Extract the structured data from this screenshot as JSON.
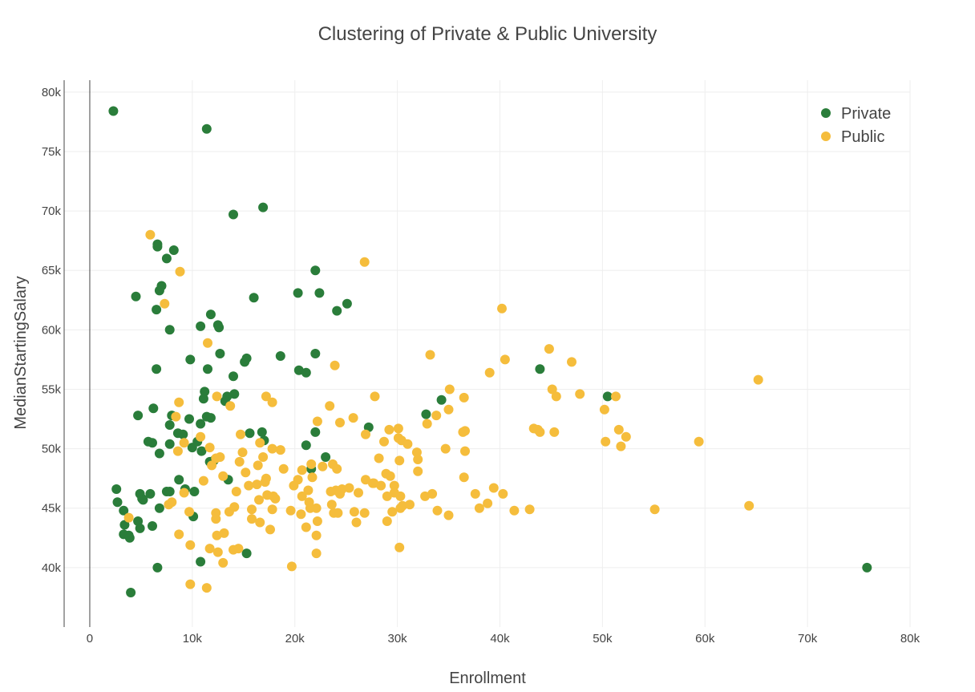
{
  "chart_data": {
    "type": "scatter",
    "title": "Clustering of Private & Public University",
    "xlabel": "Enrollment",
    "ylabel": "MedianStartingSalary",
    "xlim": [
      -2500,
      80000
    ],
    "ylim": [
      35000,
      81000
    ],
    "xticks": [
      0,
      10000,
      20000,
      30000,
      40000,
      50000,
      60000,
      70000,
      80000
    ],
    "xtick_labels": [
      "0",
      "10k",
      "20k",
      "30k",
      "40k",
      "50k",
      "60k",
      "70k",
      "80k"
    ],
    "yticks": [
      40000,
      45000,
      50000,
      55000,
      60000,
      65000,
      70000,
      75000,
      80000
    ],
    "ytick_labels": [
      "40k",
      "45k",
      "50k",
      "55k",
      "60k",
      "65k",
      "70k",
      "75k",
      "80k"
    ],
    "grid": true,
    "legend_position": "top-right",
    "series": [
      {
        "name": "Private",
        "color": "#2a7d3a",
        "points": [
          [
            2300,
            78400
          ],
          [
            11400,
            76900
          ],
          [
            16900,
            70300
          ],
          [
            14000,
            69700
          ],
          [
            6600,
            67200
          ],
          [
            8200,
            66700
          ],
          [
            6600,
            67000
          ],
          [
            7500,
            66000
          ],
          [
            22000,
            65000
          ],
          [
            7000,
            63700
          ],
          [
            6800,
            63300
          ],
          [
            4500,
            62800
          ],
          [
            22400,
            63100
          ],
          [
            20300,
            63100
          ],
          [
            16000,
            62700
          ],
          [
            25100,
            62200
          ],
          [
            6500,
            61700
          ],
          [
            24100,
            61600
          ],
          [
            11800,
            61300
          ],
          [
            10800,
            60300
          ],
          [
            12500,
            60400
          ],
          [
            12600,
            60200
          ],
          [
            7800,
            60000
          ],
          [
            22000,
            58000
          ],
          [
            12700,
            58000
          ],
          [
            18600,
            57800
          ],
          [
            15300,
            57600
          ],
          [
            15100,
            57300
          ],
          [
            9800,
            57500
          ],
          [
            6500,
            56700
          ],
          [
            11500,
            56700
          ],
          [
            20400,
            56600
          ],
          [
            21100,
            56400
          ],
          [
            14000,
            56100
          ],
          [
            43900,
            56700
          ],
          [
            34300,
            54100
          ],
          [
            50500,
            54400
          ],
          [
            14100,
            54600
          ],
          [
            13400,
            54400
          ],
          [
            11200,
            54800
          ],
          [
            13200,
            54000
          ],
          [
            11100,
            54200
          ],
          [
            6200,
            53400
          ],
          [
            4700,
            52800
          ],
          [
            8000,
            52800
          ],
          [
            9700,
            52500
          ],
          [
            11400,
            52700
          ],
          [
            11800,
            52600
          ],
          [
            32800,
            52900
          ],
          [
            7800,
            52000
          ],
          [
            10800,
            52100
          ],
          [
            27200,
            51800
          ],
          [
            8600,
            51300
          ],
          [
            9100,
            51200
          ],
          [
            22000,
            51400
          ],
          [
            15600,
            51300
          ],
          [
            16800,
            51400
          ],
          [
            5700,
            50600
          ],
          [
            6100,
            50500
          ],
          [
            10500,
            50600
          ],
          [
            7800,
            50400
          ],
          [
            17000,
            50700
          ],
          [
            21100,
            50300
          ],
          [
            10000,
            50100
          ],
          [
            10900,
            49800
          ],
          [
            6800,
            49600
          ],
          [
            23000,
            49300
          ],
          [
            12100,
            49000
          ],
          [
            11700,
            48900
          ],
          [
            21600,
            48300
          ],
          [
            8700,
            47400
          ],
          [
            13500,
            47400
          ],
          [
            2600,
            46600
          ],
          [
            7500,
            46400
          ],
          [
            7800,
            46400
          ],
          [
            10200,
            46400
          ],
          [
            4900,
            46200
          ],
          [
            5100,
            45800
          ],
          [
            5900,
            46200
          ],
          [
            9300,
            46600
          ],
          [
            2700,
            45500
          ],
          [
            5200,
            45700
          ],
          [
            6800,
            45000
          ],
          [
            3300,
            44800
          ],
          [
            10100,
            44300
          ],
          [
            4700,
            43900
          ],
          [
            6100,
            43500
          ],
          [
            3400,
            43600
          ],
          [
            4900,
            43300
          ],
          [
            3300,
            42800
          ],
          [
            3800,
            42700
          ],
          [
            3900,
            42500
          ],
          [
            15300,
            41200
          ],
          [
            10800,
            40500
          ],
          [
            6600,
            40000
          ],
          [
            4000,
            37900
          ],
          [
            75800,
            40000
          ]
        ]
      },
      {
        "name": "Public",
        "color": "#f5bd3c",
        "points": [
          [
            5900,
            68000
          ],
          [
            26800,
            65700
          ],
          [
            8800,
            64900
          ],
          [
            7300,
            62200
          ],
          [
            40200,
            61800
          ],
          [
            11500,
            58900
          ],
          [
            44800,
            58400
          ],
          [
            33200,
            57900
          ],
          [
            40500,
            57500
          ],
          [
            47000,
            57300
          ],
          [
            23900,
            57000
          ],
          [
            39000,
            56400
          ],
          [
            65200,
            55800
          ],
          [
            45100,
            55000
          ],
          [
            35100,
            55000
          ],
          [
            27800,
            54400
          ],
          [
            17200,
            54400
          ],
          [
            45500,
            54400
          ],
          [
            47800,
            54600
          ],
          [
            51300,
            54400
          ],
          [
            36500,
            54300
          ],
          [
            12400,
            54400
          ],
          [
            8700,
            53900
          ],
          [
            17800,
            53900
          ],
          [
            13700,
            53600
          ],
          [
            23400,
            53600
          ],
          [
            50200,
            53300
          ],
          [
            35000,
            53300
          ],
          [
            33800,
            52800
          ],
          [
            8400,
            52700
          ],
          [
            25700,
            52600
          ],
          [
            32900,
            52100
          ],
          [
            22200,
            52300
          ],
          [
            24400,
            52200
          ],
          [
            43300,
            51700
          ],
          [
            43700,
            51600
          ],
          [
            43900,
            51400
          ],
          [
            51600,
            51600
          ],
          [
            36400,
            51400
          ],
          [
            36600,
            51500
          ],
          [
            30100,
            51700
          ],
          [
            29200,
            51600
          ],
          [
            45300,
            51400
          ],
          [
            26900,
            51200
          ],
          [
            52300,
            51000
          ],
          [
            30100,
            50900
          ],
          [
            30400,
            50700
          ],
          [
            14700,
            51200
          ],
          [
            10800,
            51000
          ],
          [
            50300,
            50600
          ],
          [
            59400,
            50600
          ],
          [
            9200,
            50500
          ],
          [
            16600,
            50500
          ],
          [
            28700,
            50600
          ],
          [
            31000,
            50400
          ],
          [
            31900,
            49700
          ],
          [
            51800,
            50200
          ],
          [
            11700,
            50100
          ],
          [
            18600,
            49900
          ],
          [
            34700,
            50000
          ],
          [
            16900,
            49300
          ],
          [
            36600,
            49800
          ],
          [
            17800,
            50000
          ],
          [
            8600,
            49800
          ],
          [
            12700,
            49300
          ],
          [
            12300,
            49200
          ],
          [
            14600,
            48900
          ],
          [
            14900,
            49700
          ],
          [
            22700,
            48500
          ],
          [
            16400,
            48600
          ],
          [
            18900,
            48300
          ],
          [
            21600,
            48700
          ],
          [
            30200,
            49000
          ],
          [
            28200,
            49200
          ],
          [
            23700,
            48700
          ],
          [
            20700,
            48200
          ],
          [
            24100,
            48300
          ],
          [
            32000,
            49100
          ],
          [
            11900,
            48600
          ],
          [
            28900,
            47900
          ],
          [
            29300,
            47700
          ],
          [
            36500,
            47600
          ],
          [
            15200,
            48000
          ],
          [
            13000,
            47700
          ],
          [
            11100,
            47300
          ],
          [
            17200,
            47500
          ],
          [
            17100,
            47200
          ],
          [
            20300,
            47400
          ],
          [
            26900,
            47400
          ],
          [
            28400,
            46900
          ],
          [
            27600,
            47100
          ],
          [
            32000,
            48100
          ],
          [
            21700,
            47600
          ],
          [
            23500,
            46400
          ],
          [
            25300,
            46700
          ],
          [
            26200,
            46300
          ],
          [
            27700,
            47100
          ],
          [
            29700,
            46900
          ],
          [
            29700,
            46300
          ],
          [
            29000,
            46000
          ],
          [
            15500,
            46900
          ],
          [
            16300,
            47000
          ],
          [
            19900,
            46900
          ],
          [
            24000,
            46500
          ],
          [
            24400,
            46200
          ],
          [
            24600,
            46600
          ],
          [
            17300,
            46100
          ],
          [
            16500,
            45700
          ],
          [
            14300,
            46400
          ],
          [
            9200,
            46300
          ],
          [
            17900,
            46000
          ],
          [
            18100,
            45800
          ],
          [
            20700,
            46000
          ],
          [
            21300,
            46500
          ],
          [
            30300,
            46000
          ],
          [
            32700,
            46000
          ],
          [
            33400,
            46200
          ],
          [
            37600,
            46200
          ],
          [
            39400,
            46700
          ],
          [
            40300,
            46200
          ],
          [
            38800,
            45400
          ],
          [
            21400,
            45500
          ],
          [
            30500,
            45200
          ],
          [
            31200,
            45300
          ],
          [
            35000,
            44400
          ],
          [
            33900,
            44800
          ],
          [
            38000,
            45000
          ],
          [
            41400,
            44800
          ],
          [
            42900,
            44900
          ],
          [
            55100,
            44900
          ],
          [
            64300,
            45200
          ],
          [
            7700,
            45300
          ],
          [
            8000,
            45500
          ],
          [
            12300,
            44600
          ],
          [
            13600,
            44700
          ],
          [
            14100,
            45100
          ],
          [
            15800,
            44900
          ],
          [
            17800,
            44900
          ],
          [
            19600,
            44800
          ],
          [
            20600,
            44500
          ],
          [
            21500,
            45000
          ],
          [
            22100,
            45000
          ],
          [
            23600,
            45300
          ],
          [
            23800,
            44600
          ],
          [
            24200,
            44600
          ],
          [
            25800,
            44700
          ],
          [
            26800,
            44600
          ],
          [
            29500,
            44700
          ],
          [
            30300,
            45000
          ],
          [
            12300,
            44100
          ],
          [
            9700,
            44700
          ],
          [
            15800,
            44100
          ],
          [
            3800,
            44200
          ],
          [
            16600,
            43800
          ],
          [
            22200,
            43900
          ],
          [
            26000,
            43800
          ],
          [
            29000,
            43900
          ],
          [
            8700,
            42800
          ],
          [
            12400,
            42700
          ],
          [
            13100,
            42900
          ],
          [
            17600,
            43200
          ],
          [
            21100,
            43400
          ],
          [
            22100,
            42700
          ],
          [
            9800,
            41900
          ],
          [
            11700,
            41600
          ],
          [
            12500,
            41300
          ],
          [
            14000,
            41500
          ],
          [
            14500,
            41600
          ],
          [
            22100,
            41200
          ],
          [
            30200,
            41700
          ],
          [
            13000,
            40400
          ],
          [
            19700,
            40100
          ],
          [
            9800,
            38600
          ],
          [
            11400,
            38300
          ]
        ]
      }
    ]
  }
}
